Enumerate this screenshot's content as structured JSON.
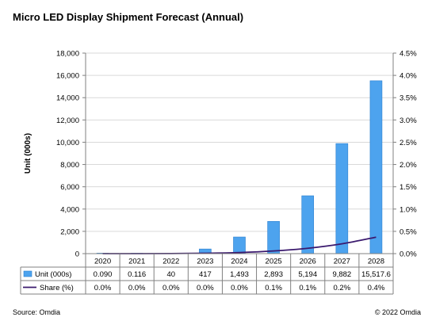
{
  "title": "Micro LED Display Shipment Forecast (Annual)",
  "source": "Source: Omdia",
  "copyright": "© 2022 Omdia",
  "colors": {
    "bar": "#4da3ee",
    "bar_edge": "#2b7fcf",
    "line": "#3b1a6e",
    "grid": "#d9d9d9",
    "axis": "#808080"
  },
  "chart_data": {
    "type": "bar",
    "categories": [
      "2020",
      "2021",
      "2022",
      "2023",
      "2024",
      "2025",
      "2026",
      "2027",
      "2028"
    ],
    "ylabel": "Unit (000s)",
    "ylim": [
      0,
      18000
    ],
    "yticks": [
      "0",
      "2,000",
      "4,000",
      "6,000",
      "8,000",
      "10,000",
      "12,000",
      "14,000",
      "16,000",
      "18,000"
    ],
    "y2lim": [
      0,
      4.5
    ],
    "y2ticks": [
      "0.0%",
      "0.5%",
      "1.0%",
      "1.5%",
      "2.0%",
      "2.5%",
      "3.0%",
      "3.5%",
      "4.0%",
      "4.5%"
    ],
    "grid": true,
    "legend_placement": "data-table",
    "series": [
      {
        "name": "Unit (000s)",
        "type": "bar",
        "axis": "left",
        "values": [
          0.09,
          0.116,
          40,
          417,
          1493,
          2893,
          5194,
          9882,
          15517.6
        ],
        "labels": [
          "0.090",
          "0.116",
          "40",
          "417",
          "1,493",
          "2,893",
          "5,194",
          "9,882",
          "15,517.6"
        ]
      },
      {
        "name": "Share (%)",
        "type": "line",
        "axis": "right",
        "values": [
          0.0,
          0.0,
          0.0,
          0.0,
          0.0,
          0.1,
          0.1,
          0.2,
          0.4
        ],
        "line_values": [
          0.0,
          0.0,
          0.002,
          0.009,
          0.025,
          0.06,
          0.12,
          0.22,
          0.37
        ],
        "labels": [
          "0.0%",
          "0.0%",
          "0.0%",
          "0.0%",
          "0.0%",
          "0.1%",
          "0.1%",
          "0.2%",
          "0.4%"
        ]
      }
    ]
  }
}
